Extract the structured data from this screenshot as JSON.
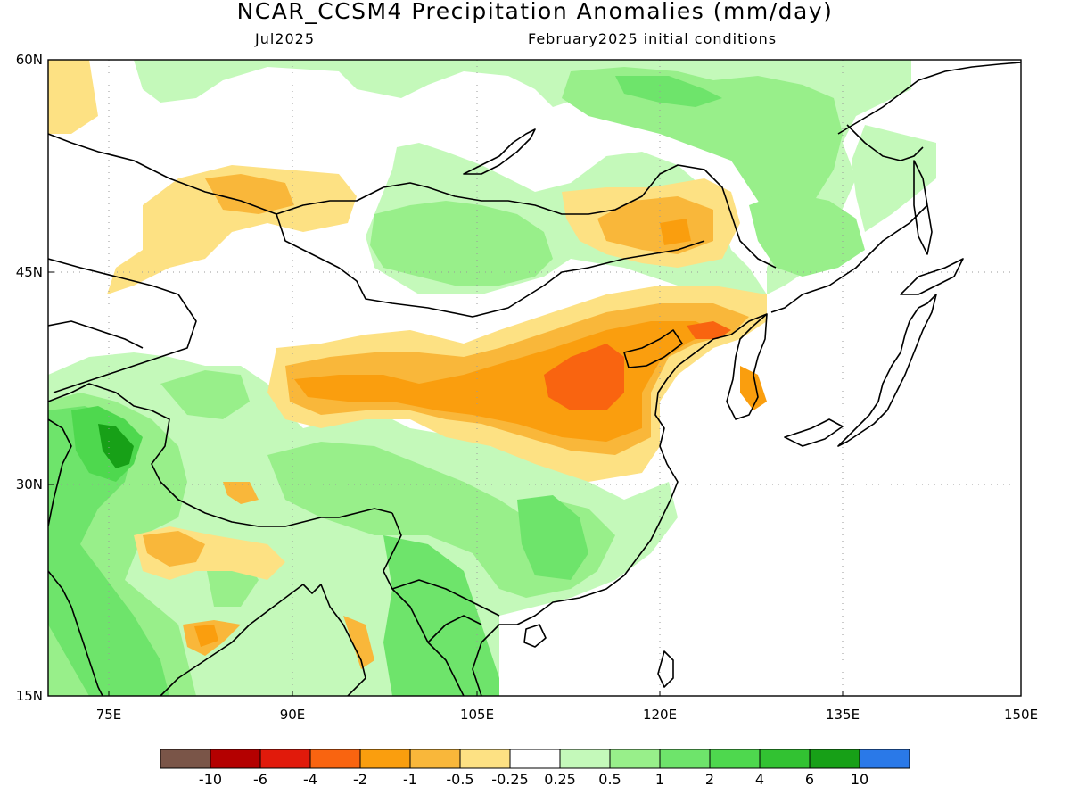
{
  "title": "NCAR_CCSM4 Precipitation Anomalies (mm/day)",
  "subtitle_left": "Jul2025",
  "subtitle_right": "February2025 initial conditions",
  "lat_labels": [
    "60N",
    "45N",
    "30N",
    "15N"
  ],
  "lon_labels": [
    "75E",
    "90E",
    "105E",
    "120E",
    "135E",
    "150E"
  ],
  "colorbar": {
    "colors": [
      "#7a5548",
      "#b40000",
      "#e11a0b",
      "#f96410",
      "#fa9e0e",
      "#f9b73a",
      "#fde183",
      "#ffffff",
      "#c4f9ba",
      "#98ef8a",
      "#6ee46b",
      "#4ed84e",
      "#32c232",
      "#17a017",
      "#2a79e8"
    ],
    "labels": [
      "-10",
      "-6",
      "-4",
      "-2",
      "-1",
      "-0.5",
      "-0.25",
      "0.25",
      "0.5",
      "1",
      "2",
      "4",
      "6",
      "10"
    ]
  },
  "map_colors": {
    "land_outline": "#000000",
    "grid": "#9a9a9a",
    "dry_light": "#fde183",
    "dry_mid": "#f9b73a",
    "dry": "#fa9e0e",
    "dry_strong": "#f96410",
    "dry_extreme": "#e11a0b",
    "wet_light": "#c4f9ba",
    "wet_mid": "#98ef8a",
    "wet": "#6ee46b",
    "wet_strong": "#4ed84e",
    "wet_very": "#32c232",
    "wet_extreme": "#17a017"
  }
}
